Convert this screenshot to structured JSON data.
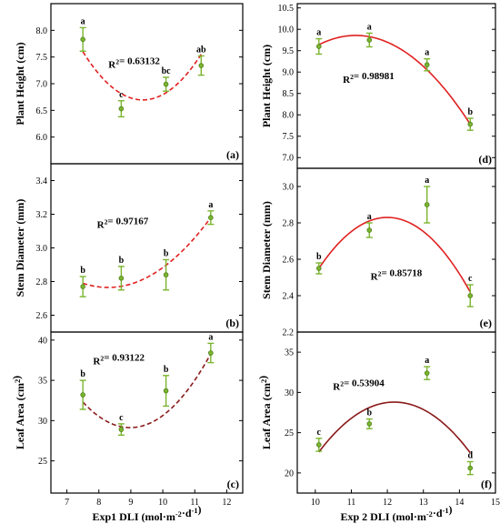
{
  "chart_data": [
    {
      "id": "a",
      "type": "scatter",
      "panel_label": "(a)",
      "xlim": [
        6.5,
        12.5
      ],
      "ylim": [
        5.5,
        8.5
      ],
      "yticks": [
        6.0,
        6.5,
        7.0,
        7.5,
        8.0
      ],
      "ylabel": "Plant Height (cm)",
      "annotation": "R2= 0.63132",
      "fit": {
        "type": "quadratic",
        "style": "dashed",
        "color": "#e02020",
        "xrange": [
          7.5,
          11.2
        ],
        "control_points": [
          [
            7.5,
            7.6
          ],
          [
            9.5,
            6.7
          ],
          [
            11.2,
            7.55
          ]
        ]
      },
      "points": [
        {
          "x": 7.5,
          "y": 7.83,
          "err": 0.22,
          "letter": "a"
        },
        {
          "x": 8.7,
          "y": 6.53,
          "err": 0.15,
          "letter": "c"
        },
        {
          "x": 10.1,
          "y": 6.99,
          "err": 0.13,
          "letter": "bc"
        },
        {
          "x": 11.2,
          "y": 7.34,
          "err": 0.18,
          "letter": "ab"
        }
      ]
    },
    {
      "id": "b",
      "type": "scatter",
      "panel_label": "(b)",
      "xlim": [
        6.5,
        12.5
      ],
      "ylim": [
        2.5,
        3.5
      ],
      "yticks": [
        2.6,
        2.8,
        3.0,
        3.2,
        3.4
      ],
      "ylabel": "Stem Diameter (mm)",
      "annotation": "R2= 0.97167",
      "fit": {
        "type": "quadratic",
        "style": "dashed",
        "color": "#e02020",
        "xrange": [
          7.5,
          11.5
        ],
        "control_points": [
          [
            7.5,
            2.79
          ],
          [
            8.3,
            2.765
          ],
          [
            11.5,
            3.18
          ]
        ]
      },
      "points": [
        {
          "x": 7.5,
          "y": 2.77,
          "err": 0.06,
          "letter": "b"
        },
        {
          "x": 8.7,
          "y": 2.82,
          "err": 0.07,
          "letter": "b"
        },
        {
          "x": 10.1,
          "y": 2.84,
          "err": 0.09,
          "letter": "b"
        },
        {
          "x": 11.5,
          "y": 3.18,
          "err": 0.04,
          "letter": "a"
        }
      ]
    },
    {
      "id": "c",
      "type": "scatter",
      "panel_label": "(c)",
      "xlim": [
        6.5,
        12.5
      ],
      "ylim": [
        21,
        41
      ],
      "yticks": [
        25,
        30,
        35,
        40
      ],
      "xticks": [
        7,
        8,
        9,
        10,
        11,
        12
      ],
      "ylabel": "Leaf Area (cm2)",
      "xlabel": "Exp1  DLI (mol·m-2·d-1)",
      "annotation": "R2= 0.93122",
      "fit": {
        "type": "quadratic",
        "style": "dashed",
        "color": "#8b1a1a",
        "xrange": [
          7.5,
          11.5
        ],
        "control_points": [
          [
            7.5,
            32.3
          ],
          [
            9.2,
            29.2
          ],
          [
            11.5,
            38.3
          ]
        ]
      },
      "points": [
        {
          "x": 7.5,
          "y": 33.2,
          "err": 1.8,
          "letter": "b"
        },
        {
          "x": 8.7,
          "y": 28.9,
          "err": 0.7,
          "letter": "c"
        },
        {
          "x": 10.1,
          "y": 33.7,
          "err": 1.9,
          "letter": "b"
        },
        {
          "x": 11.5,
          "y": 38.4,
          "err": 1.2,
          "letter": "a"
        }
      ]
    },
    {
      "id": "d",
      "type": "scatter",
      "panel_label": "(d)",
      "xlim": [
        9.5,
        15.0
      ],
      "ylim": [
        6.75,
        10.6
      ],
      "yticks": [
        7.0,
        7.5,
        8.0,
        8.5,
        9.0,
        9.5,
        10.0,
        10.5
      ],
      "ylabel": "Plant Height (cm)",
      "annotation": "R2= 0.98981",
      "fit": {
        "type": "quadratic",
        "style": "solid",
        "color": "#e02020",
        "xrange": [
          10.1,
          14.3
        ],
        "control_points": [
          [
            10.1,
            9.64
          ],
          [
            11.3,
            9.85
          ],
          [
            14.3,
            7.78
          ]
        ]
      },
      "points": [
        {
          "x": 10.1,
          "y": 9.6,
          "err": 0.18,
          "letter": "a"
        },
        {
          "x": 11.5,
          "y": 9.75,
          "err": 0.16,
          "letter": "a"
        },
        {
          "x": 13.1,
          "y": 9.17,
          "err": 0.14,
          "letter": "a"
        },
        {
          "x": 14.3,
          "y": 7.78,
          "err": 0.14,
          "letter": "b"
        }
      ]
    },
    {
      "id": "e",
      "type": "scatter",
      "panel_label": "(e)",
      "xlim": [
        9.5,
        15.0
      ],
      "ylim": [
        2.2,
        3.1
      ],
      "yticks": [
        2.2,
        2.4,
        2.6,
        2.8,
        3.0
      ],
      "ylabel": "Stem Diameter (mm)",
      "annotation": "R2= 0.85718",
      "fit": {
        "type": "quadratic",
        "style": "solid",
        "color": "#e02020",
        "xrange": [
          10.1,
          14.3
        ],
        "control_points": [
          [
            10.1,
            2.55
          ],
          [
            12.0,
            2.83
          ],
          [
            14.3,
            2.42
          ]
        ]
      },
      "points": [
        {
          "x": 10.1,
          "y": 2.55,
          "err": 0.03,
          "letter": "b"
        },
        {
          "x": 11.5,
          "y": 2.76,
          "err": 0.04,
          "letter": "a"
        },
        {
          "x": 13.1,
          "y": 2.9,
          "err": 0.1,
          "letter": "a"
        },
        {
          "x": 14.3,
          "y": 2.4,
          "err": 0.06,
          "letter": "c"
        }
      ]
    },
    {
      "id": "f",
      "type": "scatter",
      "panel_label": "(f)",
      "xlim": [
        9.5,
        15.0
      ],
      "ylim": [
        17.5,
        37.5
      ],
      "yticks": [
        20,
        25,
        30,
        35
      ],
      "xticks": [
        10,
        11,
        12,
        13,
        14,
        15
      ],
      "ylabel": "Leaf Area (cm2)",
      "xlabel": "Exp 2  DLI (mol·m-2·d-1)",
      "annotation": "R2= 0.53904",
      "fit": {
        "type": "quadratic",
        "style": "solid",
        "color": "#8b1a1a",
        "xrange": [
          10.1,
          14.3
        ],
        "control_points": [
          [
            10.1,
            22.6
          ],
          [
            12.2,
            28.8
          ],
          [
            14.3,
            22.5
          ]
        ]
      },
      "points": [
        {
          "x": 10.1,
          "y": 23.5,
          "err": 0.8,
          "letter": "c"
        },
        {
          "x": 11.5,
          "y": 26.1,
          "err": 0.6,
          "letter": "b"
        },
        {
          "x": 13.1,
          "y": 32.4,
          "err": 0.8,
          "letter": "a"
        },
        {
          "x": 14.3,
          "y": 20.6,
          "err": 0.8,
          "letter": "d"
        }
      ]
    }
  ]
}
